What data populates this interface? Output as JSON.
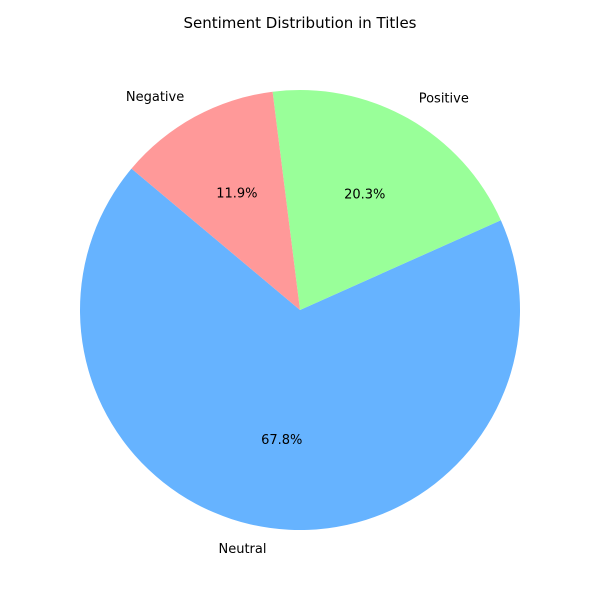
{
  "chart_data": {
    "type": "pie",
    "title": "Sentiment Distribution in Titles",
    "start_angle": 140,
    "direction": "counterclockwise",
    "slices": [
      {
        "label": "Neutral",
        "value": 67.8,
        "percent_label": "67.8%",
        "color": "#66b3ff"
      },
      {
        "label": "Positive",
        "value": 20.3,
        "percent_label": "20.3%",
        "color": "#99ff99"
      },
      {
        "label": "Negative",
        "value": 11.9,
        "percent_label": "11.9%",
        "color": "#ff9999"
      }
    ]
  }
}
